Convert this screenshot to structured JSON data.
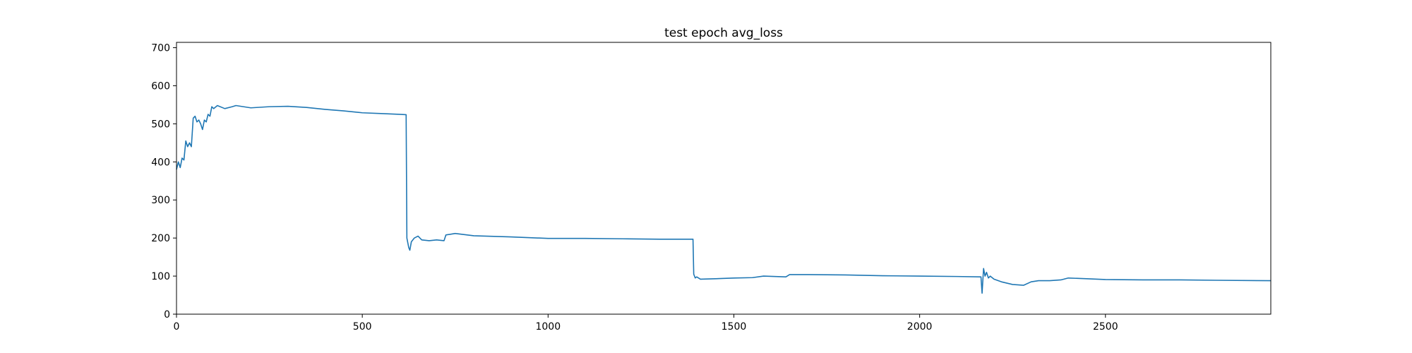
{
  "chart_data": {
    "type": "line",
    "title": "test epoch avg_loss",
    "title_color": "#ff0000",
    "x": [
      0,
      5,
      10,
      15,
      20,
      25,
      30,
      35,
      40,
      45,
      50,
      55,
      60,
      65,
      70,
      75,
      80,
      85,
      90,
      95,
      100,
      110,
      130,
      150,
      160,
      200,
      250,
      300,
      350,
      400,
      450,
      500,
      550,
      600,
      618,
      620,
      625,
      628,
      632,
      640,
      650,
      660,
      680,
      700,
      720,
      725,
      750,
      800,
      900,
      1000,
      1100,
      1200,
      1300,
      1390,
      1392,
      1396,
      1400,
      1410,
      1450,
      1500,
      1550,
      1580,
      1640,
      1650,
      1700,
      1800,
      1900,
      2000,
      2100,
      2165,
      2168,
      2172,
      2176,
      2180,
      2185,
      2190,
      2200,
      2220,
      2250,
      2280,
      2300,
      2320,
      2350,
      2380,
      2400,
      2450,
      2500,
      2600,
      2700,
      2800,
      2945
    ],
    "series": [
      {
        "name": "avg_loss",
        "color": "#1f77b4",
        "values": [
          380,
          400,
          385,
          410,
          405,
          455,
          440,
          450,
          440,
          515,
          520,
          505,
          510,
          500,
          485,
          510,
          505,
          525,
          520,
          545,
          540,
          548,
          540,
          545,
          548,
          542,
          545,
          546,
          543,
          538,
          534,
          529,
          527,
          525,
          524,
          200,
          175,
          168,
          190,
          200,
          205,
          195,
          193,
          195,
          193,
          208,
          212,
          206,
          203,
          199,
          199,
          198,
          197,
          197,
          105,
          95,
          98,
          92,
          93,
          95,
          96,
          100,
          98,
          104,
          104,
          103,
          101,
          100,
          99,
          98,
          55,
          120,
          100,
          110,
          95,
          100,
          92,
          85,
          78,
          76,
          85,
          88,
          88,
          90,
          95,
          93,
          91,
          90,
          90,
          89,
          88
        ]
      }
    ],
    "xlim": [
      0,
      2945
    ],
    "ylim": [
      0,
      714
    ],
    "xticks": [
      0,
      500,
      1000,
      1500,
      2000,
      2500
    ],
    "yticks": [
      0,
      100,
      200,
      300,
      400,
      500,
      600,
      700
    ]
  }
}
